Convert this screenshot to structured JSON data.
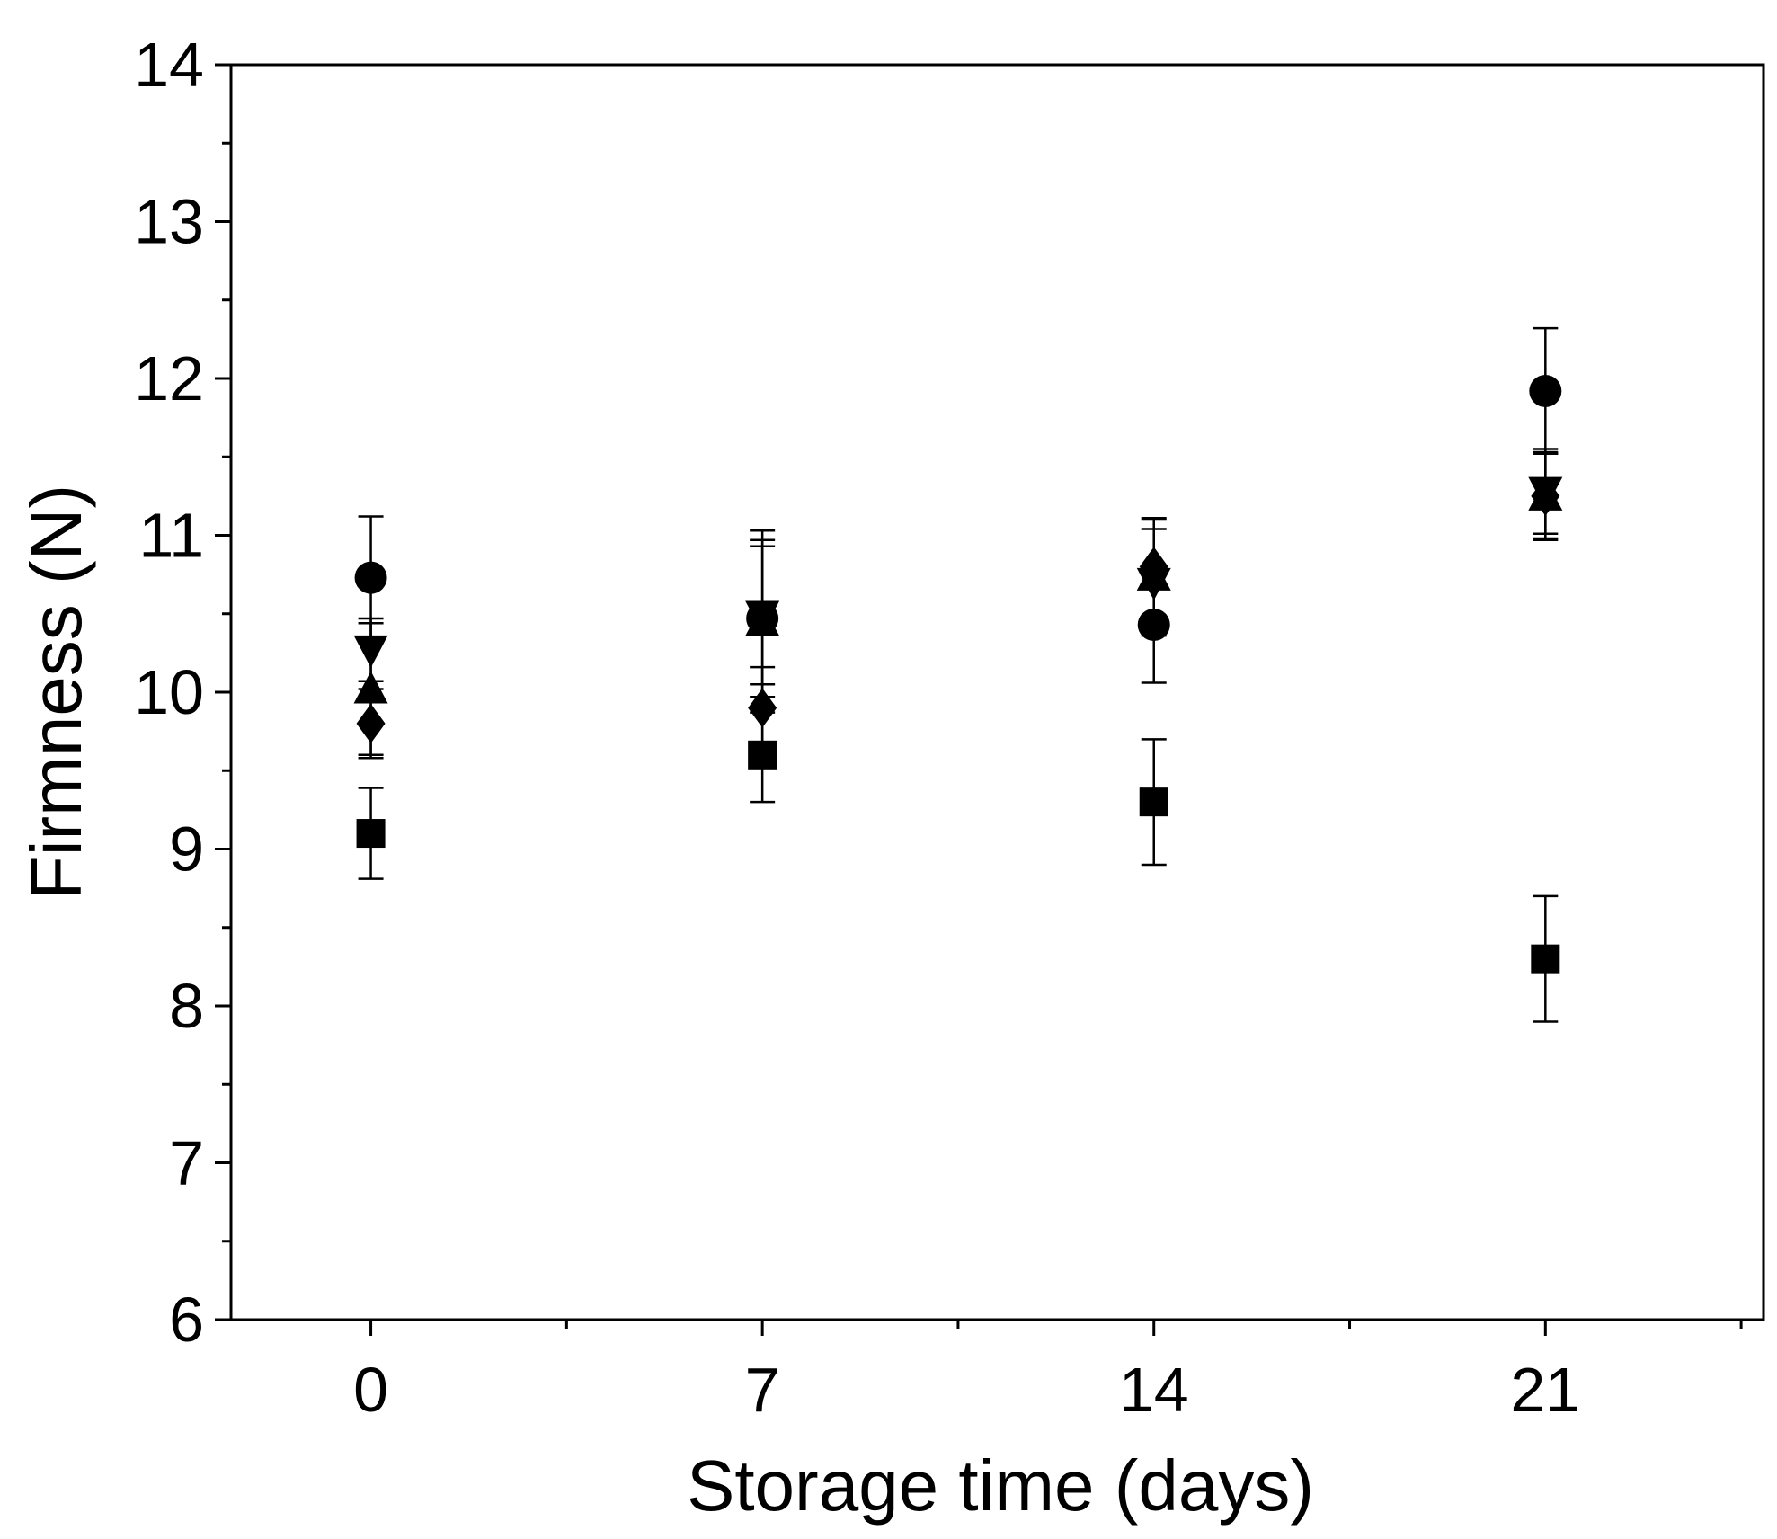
{
  "chart_data": {
    "type": "scatter",
    "xlabel": "Storage time (days)",
    "ylabel": "Firmness (N)",
    "xlim": [
      -2.5,
      24.9
    ],
    "ylim": [
      6,
      14
    ],
    "xticks": [
      0,
      7,
      14,
      21
    ],
    "xtick_labels": [
      "0",
      "7",
      "14",
      "21"
    ],
    "xminor_ticks": [
      3.5,
      10.5,
      17.5,
      24.5
    ],
    "yticks": [
      6,
      7,
      8,
      9,
      10,
      11,
      12,
      13,
      14
    ],
    "ytick_labels": [
      "6",
      "7",
      "8",
      "9",
      "10",
      "11",
      "12",
      "13",
      "14"
    ],
    "yminor_step": 0.5,
    "grid": false,
    "legend": "none",
    "color": "#000000",
    "series": [
      {
        "marker": "square",
        "x": [
          0,
          7,
          14,
          21
        ],
        "y": [
          9.1,
          9.6,
          9.3,
          8.3
        ],
        "err": [
          0.29,
          0.3,
          0.4,
          0.4
        ]
      },
      {
        "marker": "circle",
        "x": [
          0,
          7,
          14,
          21
        ],
        "y": [
          10.73,
          10.47,
          10.43,
          11.92
        ],
        "err": [
          0.39,
          0.5,
          0.37,
          0.4
        ]
      },
      {
        "marker": "triangle-up",
        "x": [
          0,
          7,
          14,
          21
        ],
        "y": [
          10.02,
          10.45,
          10.74,
          11.25
        ],
        "err": [
          0.42,
          0.58,
          0.36,
          0.27
        ]
      },
      {
        "marker": "triangle-down",
        "x": [
          0,
          7,
          14,
          21
        ],
        "y": [
          10.27,
          10.49,
          10.7,
          11.28
        ],
        "err": [
          0.2,
          0.44,
          0.34,
          0.27
        ]
      },
      {
        "marker": "diamond",
        "x": [
          0,
          7,
          14,
          21
        ],
        "y": [
          9.8,
          9.9,
          10.8,
          11.25
        ],
        "err": [
          0.22,
          0.26,
          0.31,
          0.28
        ]
      }
    ]
  }
}
